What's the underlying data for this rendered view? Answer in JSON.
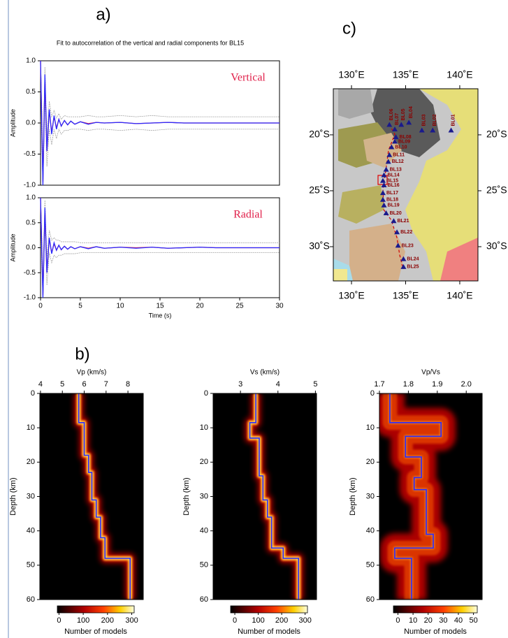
{
  "chart_data": [
    {
      "type": "line",
      "panel_label": "a)",
      "title": "Fit to autocorrelation of the vertical and radial components for BL15",
      "ylabel": "Amplitude",
      "annotation": "Vertical",
      "x": [
        0,
        0.15,
        0.3,
        0.55,
        0.8,
        1.1,
        1.4,
        1.7,
        2.0,
        2.3,
        2.6,
        3.0,
        3.4,
        3.8,
        4.3,
        5,
        6,
        7,
        8,
        10,
        12,
        14,
        16,
        18,
        20,
        22,
        25,
        28,
        30
      ],
      "series": [
        {
          "color": "#a0a0a0",
          "values": [
            1.0,
            0.3,
            -0.7,
            0.9,
            -0.2,
            0.35,
            0.1,
            0.2,
            0.08,
            0.15,
            0.06,
            0.12,
            0.1,
            0.1,
            0.1,
            0.1,
            0.12,
            0.1,
            0.1,
            0.12,
            0.1,
            0.12,
            0.1,
            0.1,
            0.1,
            0.1,
            0.1,
            0.1,
            0.1
          ]
        },
        {
          "color": "#a0a0a0",
          "values": [
            1.0,
            -0.3,
            -1.0,
            0.4,
            -0.7,
            -0.1,
            -0.35,
            -0.1,
            -0.25,
            -0.1,
            -0.18,
            -0.12,
            -0.12,
            -0.1,
            -0.1,
            -0.1,
            -0.12,
            -0.1,
            -0.1,
            -0.12,
            -0.1,
            -0.12,
            -0.1,
            -0.1,
            -0.1,
            -0.1,
            -0.1,
            -0.1,
            -0.1
          ]
        },
        {
          "color": "#e0204a",
          "values": [
            1.0,
            0.05,
            -0.95,
            0.72,
            -0.45,
            0.2,
            -0.15,
            0.1,
            -0.08,
            0.06,
            -0.05,
            0.04,
            -0.03,
            0.03,
            -0.02,
            0.02,
            -0.01,
            0.01,
            0.0,
            0.01,
            -0.01,
            0.0,
            0.01,
            0.0,
            0.0,
            0.0,
            0.0,
            0.0,
            0.0
          ]
        },
        {
          "color": "#2a2aff",
          "values": [
            1.0,
            0.0,
            -1.0,
            0.78,
            -0.45,
            0.22,
            -0.18,
            0.12,
            -0.1,
            0.06,
            -0.05,
            0.04,
            -0.03,
            0.03,
            -0.02,
            0.02,
            -0.02,
            0.01,
            0.0,
            0.01,
            -0.01,
            0.0,
            0.01,
            0.0,
            0.0,
            0.0,
            0.0,
            0.0,
            0.0
          ]
        }
      ],
      "xlim": [
        0,
        30
      ],
      "ylim": [
        -1,
        1
      ],
      "yticks": [
        {
          "value": -1,
          "label": "-1.0"
        },
        {
          "value": -0.5,
          "label": "-0.5"
        },
        {
          "value": 0,
          "label": "0.0"
        },
        {
          "value": 0.5,
          "label": "0.5"
        },
        {
          "value": 1,
          "label": "1.0"
        }
      ]
    },
    {
      "type": "line",
      "annotation": "Radial",
      "ylabel": "Amplitude",
      "xlabel": "Time (s)",
      "x": [
        0,
        0.15,
        0.3,
        0.55,
        0.8,
        1.1,
        1.4,
        1.7,
        2.0,
        2.3,
        2.6,
        3.0,
        3.4,
        3.8,
        4.3,
        5,
        6,
        7,
        8,
        10,
        12,
        14,
        16,
        18,
        20,
        22,
        25,
        28,
        30
      ],
      "series": [
        {
          "color": "#a0a0a0",
          "values": [
            1.0,
            0.3,
            -0.7,
            0.95,
            -0.2,
            0.35,
            0.15,
            0.2,
            0.15,
            0.15,
            0.12,
            0.12,
            0.12,
            0.12,
            0.12,
            0.1,
            0.1,
            0.1,
            0.1,
            0.1,
            0.1,
            0.1,
            0.1,
            0.1,
            0.1,
            0.1,
            0.1,
            0.1,
            0.1
          ]
        },
        {
          "color": "#a0a0a0",
          "values": [
            1.0,
            -0.3,
            -1.0,
            0.45,
            -0.75,
            -0.1,
            -0.3,
            -0.15,
            -0.2,
            -0.15,
            -0.15,
            -0.12,
            -0.12,
            -0.12,
            -0.12,
            -0.1,
            -0.1,
            -0.1,
            -0.1,
            -0.1,
            -0.1,
            -0.1,
            -0.1,
            -0.1,
            -0.1,
            -0.1,
            -0.1,
            -0.1,
            -0.1
          ]
        },
        {
          "color": "#e0204a",
          "values": [
            1.0,
            0.05,
            -0.95,
            0.75,
            -0.48,
            0.18,
            -0.1,
            0.08,
            -0.05,
            0.05,
            -0.04,
            0.03,
            -0.03,
            0.02,
            -0.02,
            0.02,
            -0.01,
            0.02,
            -0.01,
            0.01,
            0.0,
            0.01,
            -0.01,
            0.0,
            0.01,
            0.0,
            0.0,
            0.0,
            0.0
          ]
        },
        {
          "color": "#2a2aff",
          "values": [
            1.0,
            0.0,
            -1.0,
            0.8,
            -0.5,
            0.2,
            -0.12,
            0.1,
            -0.05,
            0.05,
            -0.04,
            0.03,
            -0.03,
            0.02,
            -0.02,
            0.02,
            -0.02,
            0.02,
            -0.01,
            0.01,
            -0.01,
            0.01,
            -0.01,
            0.0,
            0.01,
            0.0,
            0.0,
            0.0,
            0.0
          ]
        }
      ],
      "xlim": [
        0,
        30
      ],
      "ylim": [
        -1,
        1
      ],
      "xticks": [
        0,
        5,
        10,
        15,
        20,
        25,
        30
      ],
      "yticks": [
        {
          "value": -1,
          "label": "-1.0"
        },
        {
          "value": -0.5,
          "label": "-0.5"
        },
        {
          "value": 0,
          "label": "0.0"
        },
        {
          "value": 0.5,
          "label": "0.5"
        },
        {
          "value": 1,
          "label": "1.0"
        }
      ]
    },
    {
      "type": "map",
      "panel_label": "c)",
      "xlim": [
        128.32,
        141.68
      ],
      "ylim": [
        -33.06,
        -15.88
      ],
      "xticks": [
        {
          "value": 130,
          "label": "130˚E"
        },
        {
          "value": 135,
          "label": "135˚E"
        },
        {
          "value": 140,
          "label": "140˚E"
        }
      ],
      "yticks": [
        {
          "value": -20,
          "label": "20˚S"
        },
        {
          "value": -25,
          "label": "25˚S"
        },
        {
          "value": -30,
          "label": "30˚S"
        }
      ],
      "marker_color": "#1a1a8c",
      "label_color": "#8b0000",
      "stations": [
        {
          "name": "BL01",
          "lon": 139.2,
          "lat": -19.6
        },
        {
          "name": "BL02",
          "lon": 137.5,
          "lat": -19.6
        },
        {
          "name": "BL03",
          "lon": 136.5,
          "lat": -19.6
        },
        {
          "name": "BL04",
          "lon": 135.3,
          "lat": -18.9
        },
        {
          "name": "BL05",
          "lon": 134.6,
          "lat": -19.1
        },
        {
          "name": "BL06",
          "lon": 133.5,
          "lat": -19.1
        },
        {
          "name": "BL07",
          "lon": 134.0,
          "lat": -19.5
        },
        {
          "name": "BL08",
          "lon": 134.1,
          "lat": -20.2
        },
        {
          "name": "BL09",
          "lon": 134.0,
          "lat": -20.6
        },
        {
          "name": "BL10",
          "lon": 133.7,
          "lat": -21.1
        },
        {
          "name": "BL11",
          "lon": 133.5,
          "lat": -21.8
        },
        {
          "name": "BL12",
          "lon": 133.4,
          "lat": -22.4
        },
        {
          "name": "BL13",
          "lon": 133.2,
          "lat": -23.1
        },
        {
          "name": "BL14",
          "lon": 133.0,
          "lat": -23.6
        },
        {
          "name": "BL15",
          "lon": 132.9,
          "lat": -24.1
        },
        {
          "name": "BL16",
          "lon": 133.0,
          "lat": -24.5
        },
        {
          "name": "BL17",
          "lon": 132.9,
          "lat": -25.2
        },
        {
          "name": "BL18",
          "lon": 132.9,
          "lat": -25.8
        },
        {
          "name": "BL19",
          "lon": 133.0,
          "lat": -26.3
        },
        {
          "name": "BL20",
          "lon": 133.2,
          "lat": -27.0
        },
        {
          "name": "BL21",
          "lon": 133.9,
          "lat": -27.7
        },
        {
          "name": "BL22",
          "lon": 134.2,
          "lat": -28.7
        },
        {
          "name": "BL23",
          "lon": 134.3,
          "lat": -29.9
        },
        {
          "name": "BL24",
          "lon": 134.8,
          "lat": -31.1
        },
        {
          "name": "BL25",
          "lon": 134.8,
          "lat": -31.8
        }
      ]
    },
    {
      "type": "profile",
      "panel_label": "b)",
      "xlabel": "Vp (km/s)",
      "ylabel": "Depth (km)",
      "xlim": [
        3.97,
        8.7
      ],
      "xticks": [
        4,
        5,
        6,
        7,
        8
      ],
      "ylim": [
        0,
        60
      ],
      "yticks": [
        0,
        10,
        20,
        30,
        40,
        50,
        60
      ],
      "color": "#2a2aff",
      "spread": 1,
      "depth": [
        0,
        8.5,
        8.5,
        18,
        18,
        23,
        23,
        31,
        31,
        36,
        36,
        42,
        42,
        48,
        48,
        60
      ],
      "values": [
        5.75,
        5.75,
        6.0,
        6.0,
        6.2,
        6.2,
        6.35,
        6.35,
        6.55,
        6.55,
        6.75,
        6.75,
        6.95,
        6.95,
        8.1,
        8.1
      ],
      "colorbar": {
        "label": "Number of models",
        "lim": [
          -7,
          310
        ],
        "ticks": [
          0,
          100,
          200,
          300
        ]
      }
    },
    {
      "type": "profile",
      "xlabel": "Vs (km/s)",
      "ylabel": "Depth (km)",
      "xlim": [
        2.27,
        5.03
      ],
      "xticks": [
        3,
        4,
        5
      ],
      "ylim": [
        0,
        60
      ],
      "yticks": [
        0,
        10,
        20,
        30,
        40,
        50,
        60
      ],
      "color": "#2a2aff",
      "spread": 1,
      "depth": [
        0,
        8.5,
        8.5,
        13,
        13,
        24,
        24,
        31,
        31,
        36,
        36,
        45,
        45,
        48,
        48,
        60
      ],
      "values": [
        3.41,
        3.41,
        3.25,
        3.25,
        3.5,
        3.5,
        3.6,
        3.6,
        3.72,
        3.72,
        3.83,
        3.83,
        4.14,
        4.14,
        4.55,
        4.55
      ],
      "colorbar": {
        "label": "Number of models",
        "lim": [
          -18,
          310
        ],
        "ticks": [
          0,
          100,
          200,
          300
        ]
      }
    },
    {
      "type": "profile",
      "xlabel": "Vp/Vs",
      "ylabel": "Depth (km)",
      "xlim": [
        1.7,
        2.055
      ],
      "xticks": [
        1.7,
        1.8,
        1.9,
        {
          "value": 2,
          "label": "2.0"
        }
      ],
      "ylim": [
        0,
        60
      ],
      "yticks": [
        0,
        10,
        20,
        30,
        40,
        50,
        60
      ],
      "color": "#2a2aff",
      "spread": 3,
      "depth": [
        0,
        8.5,
        8.5,
        12.5,
        12.5,
        18.5,
        18.5,
        24.5,
        24.5,
        28,
        28,
        41,
        41,
        45,
        45,
        48,
        48,
        60
      ],
      "values": [
        1.736,
        1.736,
        1.913,
        1.913,
        1.79,
        1.79,
        1.845,
        1.845,
        1.82,
        1.82,
        1.862,
        1.862,
        1.886,
        1.886,
        1.753,
        1.753,
        1.811,
        1.811
      ],
      "colorbar": {
        "label": "Number of models",
        "lim": [
          -3,
          52.5
        ],
        "ticks": [
          0,
          10,
          20,
          30,
          40,
          50
        ]
      }
    }
  ]
}
